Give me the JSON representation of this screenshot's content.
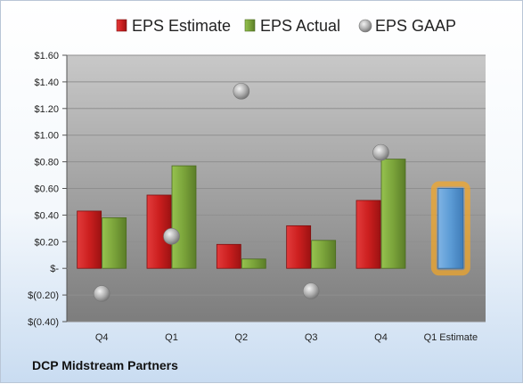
{
  "company": "DCP Midstream Partners",
  "chart_data": {
    "type": "bar",
    "categories": [
      "Q4",
      "Q1",
      "Q2",
      "Q3",
      "Q4",
      "Q1 Estimate"
    ],
    "series": [
      {
        "name": "EPS Estimate",
        "values": [
          0.43,
          0.55,
          0.18,
          0.32,
          0.51,
          null
        ],
        "color": "#cc1f1f"
      },
      {
        "name": "EPS Actual",
        "values": [
          0.38,
          0.77,
          0.07,
          0.21,
          0.82,
          null
        ],
        "color": "#7aa33a"
      },
      {
        "name": "EPS GAAP",
        "values": [
          -0.19,
          0.24,
          1.33,
          -0.17,
          0.87,
          null
        ],
        "color": "#a8a8a8",
        "marker": "circle"
      }
    ],
    "estimate": {
      "category": "Q1 Estimate",
      "value": 0.6,
      "color": "#5b9bd5",
      "glow": "#f5a623"
    },
    "ylim": [
      -0.4,
      1.6
    ],
    "yticks": [
      -0.4,
      -0.2,
      0,
      0.2,
      0.4,
      0.6,
      0.8,
      1.0,
      1.2,
      1.4,
      1.6
    ],
    "ytick_labels": [
      "$(0.40)",
      "$(0.20)",
      "$-",
      "$0.20",
      "$0.40",
      "$0.60",
      "$0.80",
      "$1.00",
      "$1.20",
      "$1.40",
      "$1.60"
    ],
    "grid": true,
    "legend_position": "top",
    "xlabel": "",
    "ylabel": ""
  }
}
